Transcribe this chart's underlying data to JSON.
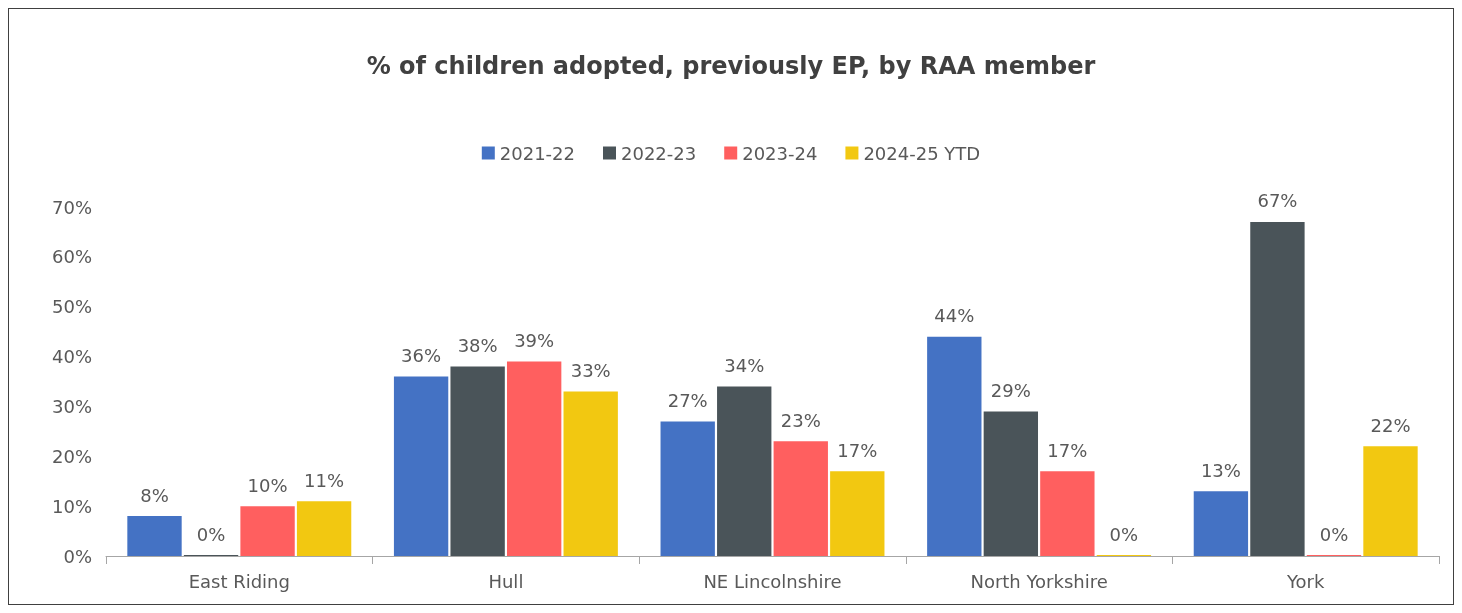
{
  "chart_data": {
    "type": "bar",
    "title": "% of children adopted, previously EP, by RAA member",
    "categories": [
      "East Riding",
      "Hull",
      "NE Lincolnshire",
      "North Yorkshire",
      "York"
    ],
    "series": [
      {
        "name": "2021-22",
        "color": "#4472c4",
        "values": [
          8,
          36,
          27,
          44,
          13
        ],
        "value_labels": [
          "8%",
          "36%",
          "27%",
          "44%",
          "13%"
        ]
      },
      {
        "name": "2022-23",
        "color": "#4a5459",
        "values": [
          0,
          38,
          34,
          29,
          67
        ],
        "value_labels": [
          "0%",
          "38%",
          "34%",
          "29%",
          "67%"
        ]
      },
      {
        "name": "2023-24",
        "color": "#ff5f5f",
        "values": [
          10,
          39,
          23,
          17,
          0
        ],
        "value_labels": [
          "10%",
          "39%",
          "23%",
          "17%",
          "0%"
        ]
      },
      {
        "name": "2024-25 YTD",
        "color": "#f2c811",
        "values": [
          11,
          33,
          17,
          0,
          22
        ],
        "value_labels": [
          "11%",
          "33%",
          "17%",
          "0%",
          "22%"
        ]
      }
    ],
    "ylim": [
      0,
      70
    ],
    "yticks": [
      {
        "value": 0,
        "label": "0%"
      },
      {
        "value": 10,
        "label": "10%"
      },
      {
        "value": 20,
        "label": "20%"
      },
      {
        "value": 30,
        "label": "30%"
      },
      {
        "value": 40,
        "label": "40%"
      },
      {
        "value": 50,
        "label": "50%"
      },
      {
        "value": 60,
        "label": "60%"
      },
      {
        "value": 70,
        "label": "70%"
      }
    ],
    "grid": false,
    "legend": "top"
  }
}
